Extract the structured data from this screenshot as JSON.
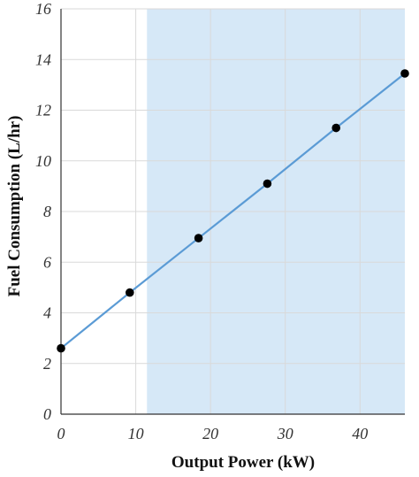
{
  "chart_data": {
    "type": "line",
    "xlabel": "Output Power (kW)",
    "ylabel": "Fuel Consumption (L/hr)",
    "xlim": [
      0,
      46
    ],
    "ylim": [
      0,
      16
    ],
    "x_ticks": [
      0,
      10,
      20,
      30,
      40
    ],
    "y_ticks": [
      0,
      2,
      4,
      6,
      8,
      10,
      12,
      14,
      16
    ],
    "grid": true,
    "shaded_region": {
      "x_start": 11.5,
      "x_end": 46,
      "color": "#d6e8f7"
    },
    "series": [
      {
        "color": "#5b9bd5",
        "marker_color": "#000000",
        "x": [
          0,
          9.2,
          18.4,
          27.6,
          36.8,
          46
        ],
        "y": [
          2.6,
          4.8,
          6.95,
          9.1,
          11.3,
          13.45
        ]
      }
    ],
    "colors": {
      "grid": "#d9d9d9",
      "axis": "#333333"
    }
  }
}
